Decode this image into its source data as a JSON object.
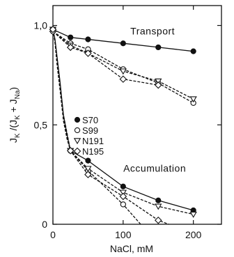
{
  "chart_data": {
    "type": "line",
    "title": "",
    "xlabel": "NaCl, mM",
    "ylabel": "J_K / (J_K + J_Na)",
    "xlim": [
      0,
      240
    ],
    "ylim": [
      0,
      1.1
    ],
    "x_ticks": [
      0,
      100,
      200
    ],
    "x_tick_labels": [
      "0",
      "100",
      "200"
    ],
    "y_ticks": [
      0,
      0.5,
      1.0
    ],
    "y_tick_labels": [
      "0",
      "0,5",
      "1,0"
    ],
    "grid": false,
    "legend_position": "center-left",
    "annotations": [
      {
        "text": "Transport",
        "x": 140,
        "y": 0.955
      },
      {
        "text": "Accumulation",
        "x": 130,
        "y": 0.265
      }
    ],
    "series": [
      {
        "name": "S70",
        "group": "Transport",
        "marker": "filled-circle",
        "line": "solid",
        "x": [
          0,
          25,
          50,
          100,
          150,
          200
        ],
        "y": [
          0.98,
          0.94,
          0.93,
          0.91,
          0.89,
          0.87
        ]
      },
      {
        "name": "S99",
        "group": "Transport",
        "marker": "open-circle",
        "line": "dashed",
        "x": [
          0,
          25,
          50,
          100,
          150,
          200
        ],
        "y": [
          0.97,
          0.91,
          0.88,
          0.78,
          0.71,
          0.61
        ]
      },
      {
        "name": "N191",
        "group": "Transport",
        "marker": "open-triangle-down",
        "line": "dashed",
        "x": [
          0,
          25,
          50,
          100,
          150,
          200
        ],
        "y": [
          0.97,
          0.9,
          0.86,
          0.77,
          0.72,
          0.63
        ]
      },
      {
        "name": "N195",
        "group": "Transport",
        "marker": "open-diamond",
        "line": "dashed",
        "x": [
          0,
          25,
          50,
          100,
          150
        ],
        "y": [
          0.97,
          0.89,
          0.86,
          0.73,
          0.7
        ]
      },
      {
        "name": "S70",
        "group": "Accumulation",
        "marker": "filled-circle",
        "line": "solid",
        "x": [
          0,
          3,
          6,
          10,
          15,
          20,
          25,
          50,
          100,
          150,
          200
        ],
        "y": [
          0.98,
          0.93,
          0.84,
          0.72,
          0.55,
          0.45,
          0.37,
          0.32,
          0.19,
          0.12,
          0.07
        ]
      },
      {
        "name": "S99",
        "group": "Accumulation",
        "marker": "open-circle",
        "line": "dashed",
        "x": [
          0,
          3,
          6,
          10,
          15,
          20,
          25,
          50,
          100,
          125
        ],
        "y": [
          0.98,
          0.92,
          0.82,
          0.7,
          0.55,
          0.46,
          0.37,
          0.27,
          0.1,
          0.0
        ]
      },
      {
        "name": "N191",
        "group": "Accumulation",
        "marker": "open-triangle-down",
        "line": "dashed",
        "x": [
          0,
          3,
          6,
          10,
          15,
          20,
          25,
          50,
          100,
          150,
          200
        ],
        "y": [
          0.98,
          0.92,
          0.81,
          0.68,
          0.53,
          0.44,
          0.37,
          0.28,
          0.16,
          0.09,
          0.05
        ]
      },
      {
        "name": "N195",
        "group": "Accumulation",
        "marker": "open-diamond",
        "line": "dashed",
        "x": [
          0,
          3,
          6,
          10,
          15,
          20,
          25,
          50,
          100,
          150,
          165
        ],
        "y": [
          0.98,
          0.91,
          0.8,
          0.68,
          0.52,
          0.43,
          0.37,
          0.25,
          0.14,
          0.02,
          0.0
        ]
      }
    ],
    "legend": [
      {
        "marker": "filled-circle",
        "label": "S70"
      },
      {
        "marker": "open-circle",
        "label": "S99"
      },
      {
        "marker": "open-triangle-down",
        "label": "N191"
      },
      {
        "marker": "open-diamond",
        "label": "N195"
      }
    ]
  }
}
